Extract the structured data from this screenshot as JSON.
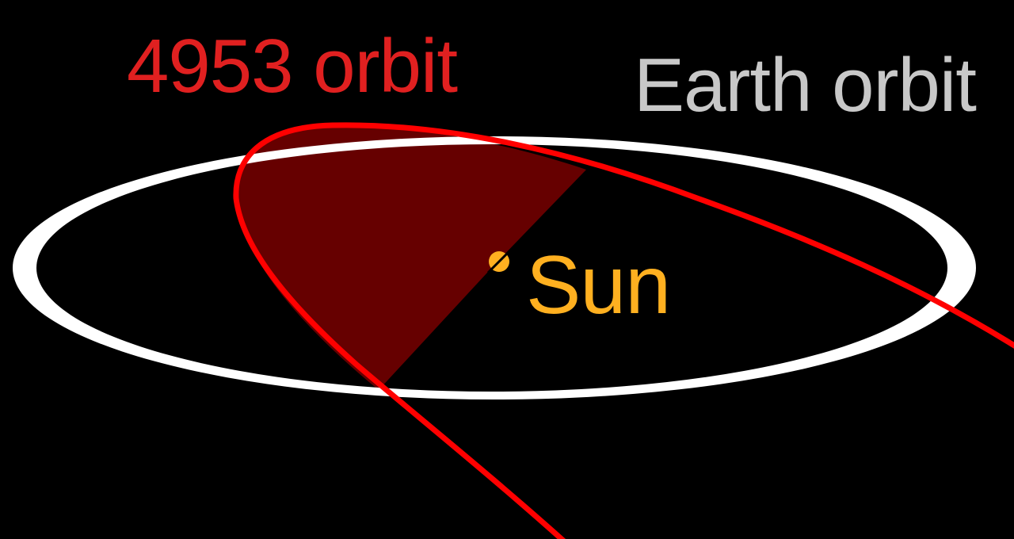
{
  "labels": {
    "asteroid_orbit": "4953 orbit",
    "earth_orbit": "Earth orbit",
    "sun": "Sun"
  },
  "colors": {
    "background": "#000000",
    "asteroid_orbit": "#ff0000",
    "asteroid_label": "#e02020",
    "swept_region": "#660000",
    "earth_orbit": "#ffffff",
    "earth_label": "#c8c8c8",
    "sun": "#ffb020",
    "sun_label": "#ffb020"
  }
}
